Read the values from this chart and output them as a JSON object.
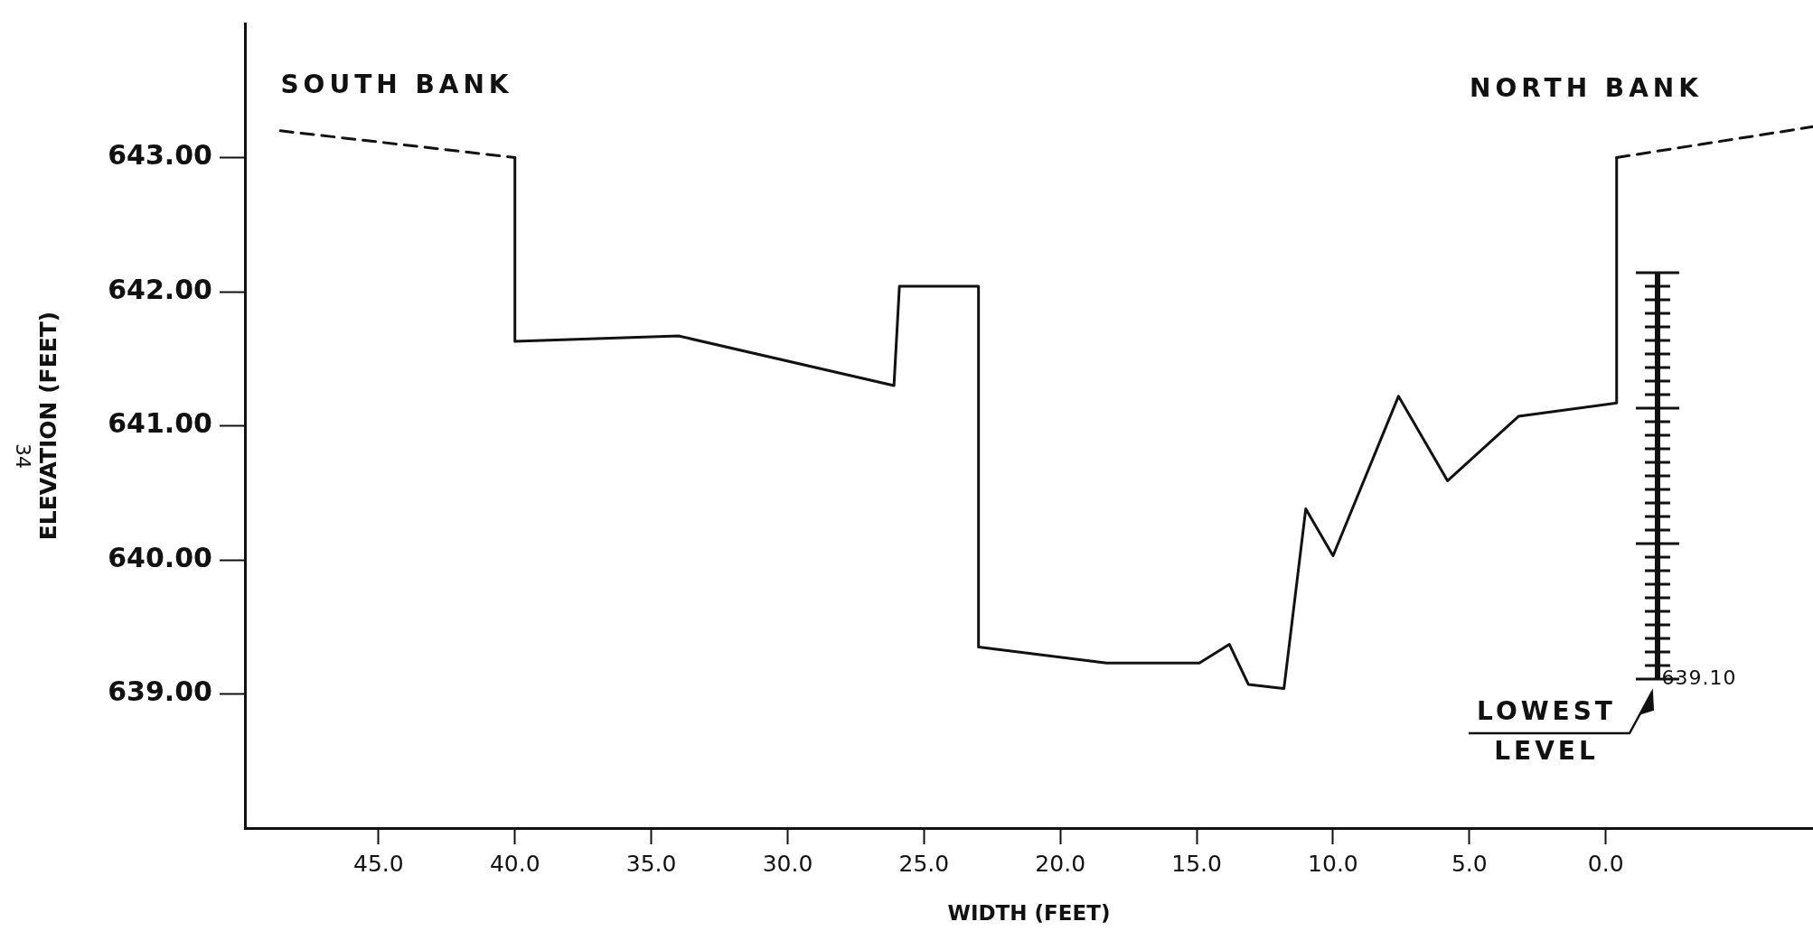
{
  "chart_data": {
    "type": "line",
    "xlabel": "WIDTH (FEET)",
    "ylabel": "ELEVATION (FEET)",
    "xlim": [
      49.9,
      -7.6
    ],
    "ylim": [
      638,
      644
    ],
    "xticks": [
      {
        "value": 45,
        "label": "45.0"
      },
      {
        "value": 40,
        "label": "40.0"
      },
      {
        "value": 35,
        "label": "35.0"
      },
      {
        "value": 30,
        "label": "30.0"
      },
      {
        "value": 25,
        "label": "25.0"
      },
      {
        "value": 20,
        "label": "20.0"
      },
      {
        "value": 15,
        "label": "15.0"
      },
      {
        "value": 10,
        "label": "10.0"
      },
      {
        "value": 5,
        "label": "5.0"
      },
      {
        "value": 0,
        "label": "0.0"
      }
    ],
    "yticks": [
      {
        "value": 639,
        "label": "639.00"
      },
      {
        "value": 640,
        "label": "640.00"
      },
      {
        "value": 641,
        "label": "641.00"
      },
      {
        "value": 642,
        "label": "642.00"
      },
      {
        "value": 643,
        "label": "643.00"
      }
    ],
    "grid": false,
    "legend": false,
    "marker": "none",
    "series": [
      {
        "color": "#111111",
        "line_style": "solid",
        "x": [
          40,
          40,
          34,
          26.1,
          25.9,
          23,
          23,
          18.3,
          14.9,
          13.8,
          13.1,
          11.8,
          11,
          10,
          7.6,
          5.8,
          3.2,
          -0.4,
          -0.4
        ],
        "values": [
          643,
          641.63,
          641.67,
          641.3,
          642.04,
          642.04,
          639.35,
          639.23,
          639.23,
          639.37,
          639.07,
          639.04,
          640.38,
          640.03,
          641.22,
          640.59,
          641.07,
          641.17,
          643
        ]
      },
      {
        "color": "#111111",
        "line_style": "dashed",
        "x": [
          48.6,
          40
        ],
        "values": [
          643.2,
          643
        ]
      },
      {
        "color": "#111111",
        "line_style": "dashed",
        "x": [
          -0.4,
          -7.6
        ],
        "values": [
          643,
          643.23
        ]
      }
    ],
    "annotations": [
      "SOUTH BANK",
      "NORTH BANK",
      "639.10",
      "LOWEST LEVEL",
      "34"
    ]
  }
}
